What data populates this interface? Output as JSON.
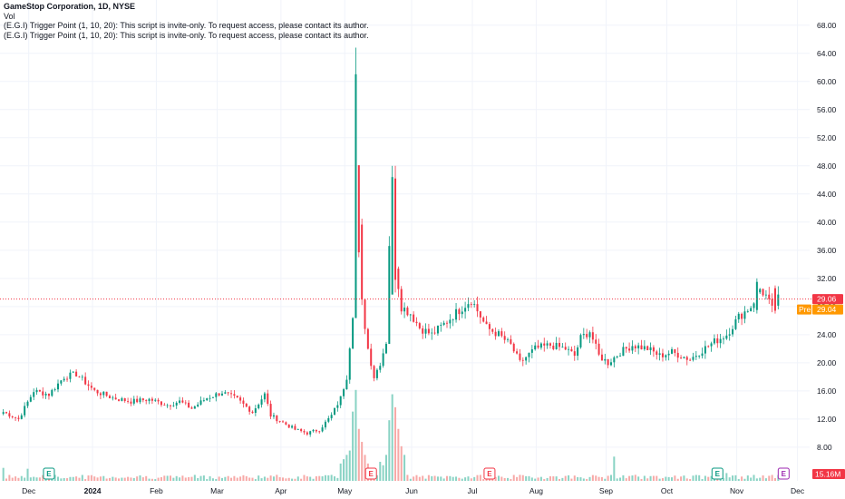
{
  "legend": {
    "title": "GameStop Corporation, 1D, NYSE",
    "vol": "Vol",
    "line1": "(E.G.I) Trigger Point  (1, 10, 20): This script is invite-only. To request access, please contact its author.",
    "line2": "(E.G.I) Trigger Point  (1, 10, 20): This script is invite-only. To request access, please contact its author."
  },
  "price_tag": {
    "value": "29.06",
    "color": "#f23645"
  },
  "pre_tag": {
    "label": "Pre",
    "value": "29.04",
    "color": "#ff9800"
  },
  "volume_tag": {
    "value": "15.16M",
    "color": "#f23645"
  },
  "events": [
    "E",
    "E",
    "E",
    "E",
    "E"
  ],
  "colors": {
    "up": "#089981",
    "down": "#f23645",
    "vol_up": "#89d3c4",
    "vol_down": "#f7a9a7",
    "grid": "#f0f3fa"
  },
  "chart_data": {
    "type": "candlestick",
    "y_ticks": [
      "68.00",
      "64.00",
      "60.00",
      "56.00",
      "52.00",
      "48.00",
      "44.00",
      "40.00",
      "36.00",
      "32.00",
      "28.00",
      "24.00",
      "20.00",
      "16.00",
      "12.00",
      "8.00"
    ],
    "ylim": [
      4.5,
      69
    ],
    "x_labels": [
      "Dec",
      "2024",
      "Feb",
      "Mar",
      "Apr",
      "May",
      "Jun",
      "Jul",
      "Aug",
      "Sep",
      "Oct",
      "Nov",
      "Dec"
    ],
    "x_bold": [
      "2024"
    ],
    "month_start_index": [
      0,
      21,
      42,
      62,
      83,
      104,
      126,
      146,
      167,
      190,
      210,
      233,
      253
    ],
    "anchors": [
      [
        0,
        13.0
      ],
      [
        5,
        12.0
      ],
      [
        10,
        16.0
      ],
      [
        15,
        15.5
      ],
      [
        20,
        18.0
      ],
      [
        24,
        18.4
      ],
      [
        30,
        16.0
      ],
      [
        36,
        15.0
      ],
      [
        42,
        14.5
      ],
      [
        48,
        14.8
      ],
      [
        54,
        14.0
      ],
      [
        58,
        14.5
      ],
      [
        62,
        13.5
      ],
      [
        67,
        15.0
      ],
      [
        72,
        15.8
      ],
      [
        77,
        14.8
      ],
      [
        82,
        13.0
      ],
      [
        86,
        15.5
      ],
      [
        88,
        12.5
      ],
      [
        92,
        11.5
      ],
      [
        96,
        10.5
      ],
      [
        100,
        10.0
      ],
      [
        104,
        10.5
      ],
      [
        108,
        12.5
      ],
      [
        111,
        15.0
      ],
      [
        113,
        18.0
      ],
      [
        115,
        27.0
      ],
      [
        116,
        48.0
      ],
      [
        117,
        39.0
      ],
      [
        118,
        28.5
      ],
      [
        120,
        22.0
      ],
      [
        122,
        18.0
      ],
      [
        124,
        20.0
      ],
      [
        126,
        23.0
      ],
      [
        127,
        30.0
      ],
      [
        128,
        44.0
      ],
      [
        129,
        34.0
      ],
      [
        131,
        28.0
      ],
      [
        134,
        27.0
      ],
      [
        137,
        25.0
      ],
      [
        141,
        24.0
      ],
      [
        145,
        25.5
      ],
      [
        150,
        27.5
      ],
      [
        154,
        29.0
      ],
      [
        159,
        25.0
      ],
      [
        163,
        24.0
      ],
      [
        167,
        22.5
      ],
      [
        170,
        20.0
      ],
      [
        175,
        22.0
      ],
      [
        180,
        22.5
      ],
      [
        185,
        22.0
      ],
      [
        188,
        21.0
      ],
      [
        190,
        23.5
      ],
      [
        193,
        24.5
      ],
      [
        196,
        21.0
      ],
      [
        199,
        20.0
      ],
      [
        203,
        21.5
      ],
      [
        207,
        22.5
      ],
      [
        212,
        22.0
      ],
      [
        216,
        21.0
      ],
      [
        220,
        21.5
      ],
      [
        226,
        20.5
      ],
      [
        229,
        21.5
      ],
      [
        234,
        23.0
      ],
      [
        238,
        24.0
      ],
      [
        242,
        26.5
      ],
      [
        246,
        28.0
      ],
      [
        249,
        30.5
      ],
      [
        251,
        29.5
      ],
      [
        253,
        27.5
      ],
      [
        255,
        29.06
      ]
    ],
    "spikes": [
      {
        "index": 116,
        "high": 64.8,
        "low": 27.0
      },
      {
        "index": 117,
        "high": 42.0,
        "low": 35.0
      },
      {
        "index": 128,
        "high": 48.0,
        "low": 32.0
      },
      {
        "index": 129,
        "high": 48.0,
        "low": 30.0
      },
      {
        "index": 127,
        "high": 38.0,
        "low": 24.0
      },
      {
        "index": 248,
        "high": 32.0,
        "low": 27.0
      },
      {
        "index": 254,
        "high": 31.0,
        "low": 27.0
      }
    ],
    "volume_ylim": [
      0,
      110
    ],
    "volume_spikes": {
      "114": 35,
      "115": 80,
      "116": 105,
      "117": 60,
      "118": 45,
      "119": 30,
      "120": 20,
      "126": 30,
      "127": 70,
      "128": 100,
      "129": 85,
      "130": 60,
      "131": 40,
      "132": 30,
      "201": 28,
      "111": 20,
      "112": 25,
      "113": 30,
      "124": 22,
      "125": 18,
      "0": 15,
      "8": 14,
      "238": 9
    },
    "n_bars": 256
  }
}
